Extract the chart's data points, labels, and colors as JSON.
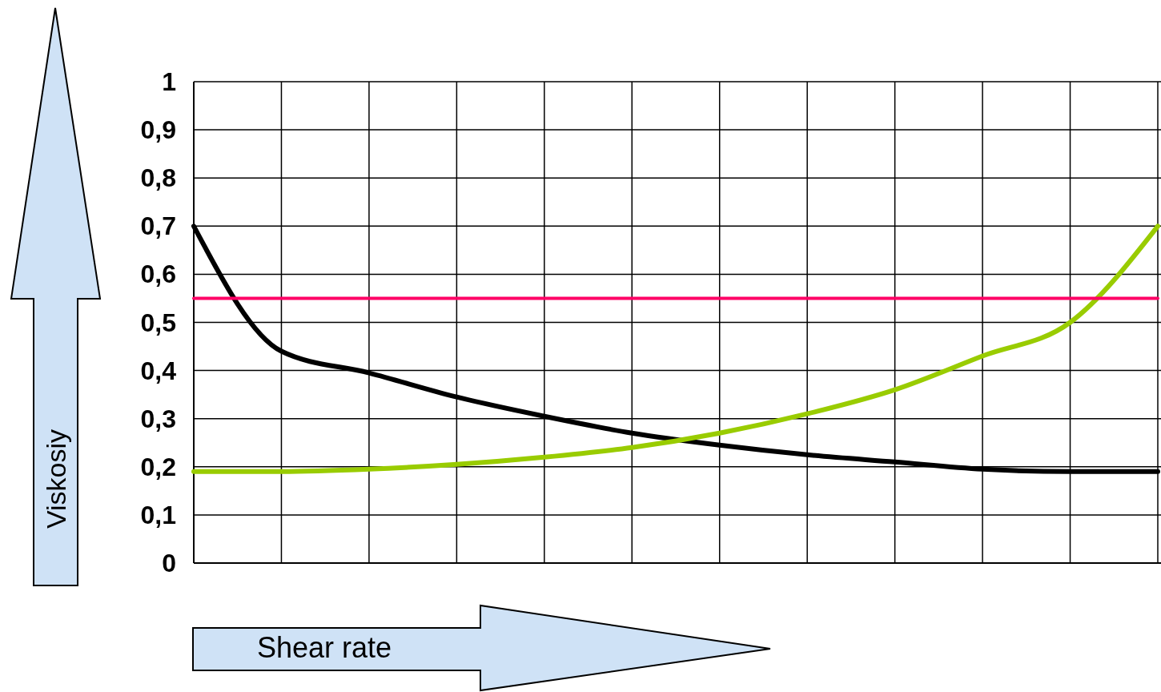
{
  "chart_data": {
    "type": "line",
    "xlabel": "Shear rate",
    "ylabel": "Viskosiy",
    "categories": [
      null,
      null,
      null,
      null,
      null,
      null,
      null,
      null,
      null,
      null,
      null,
      null
    ],
    "series": [
      {
        "color": "#000000",
        "values": [
          0.7,
          0.44,
          0.395,
          0.345,
          0.305,
          0.27,
          0.245,
          0.225,
          0.21,
          0.195,
          0.19,
          0.19
        ]
      },
      {
        "color": "#99cc00",
        "values": [
          0.19,
          0.19,
          0.195,
          0.205,
          0.22,
          0.24,
          0.27,
          0.31,
          0.36,
          0.43,
          0.5,
          0.7
        ]
      },
      {
        "color": "#ff0066",
        "values": [
          0.55,
          0.55,
          0.55,
          0.55,
          0.55,
          0.55,
          0.55,
          0.55,
          0.55,
          0.55,
          0.55,
          0.55
        ]
      }
    ],
    "ylim": [
      0,
      1
    ],
    "yticks": [
      {
        "value": 0,
        "label": "0"
      },
      {
        "value": 0.1,
        "label": "0,1"
      },
      {
        "value": 0.2,
        "label": "0,2"
      },
      {
        "value": 0.3,
        "label": "0,3"
      },
      {
        "value": 0.4,
        "label": "0,4"
      },
      {
        "value": 0.5,
        "label": "0,5"
      },
      {
        "value": 0.6,
        "label": "0,6"
      },
      {
        "value": 0.7,
        "label": "0,7"
      },
      {
        "value": 0.8,
        "label": "0,8"
      },
      {
        "value": 0.9,
        "label": "0,9"
      },
      {
        "value": 1,
        "label": "1"
      }
    ],
    "grid": true,
    "marker": "none",
    "line_style": "solid"
  }
}
